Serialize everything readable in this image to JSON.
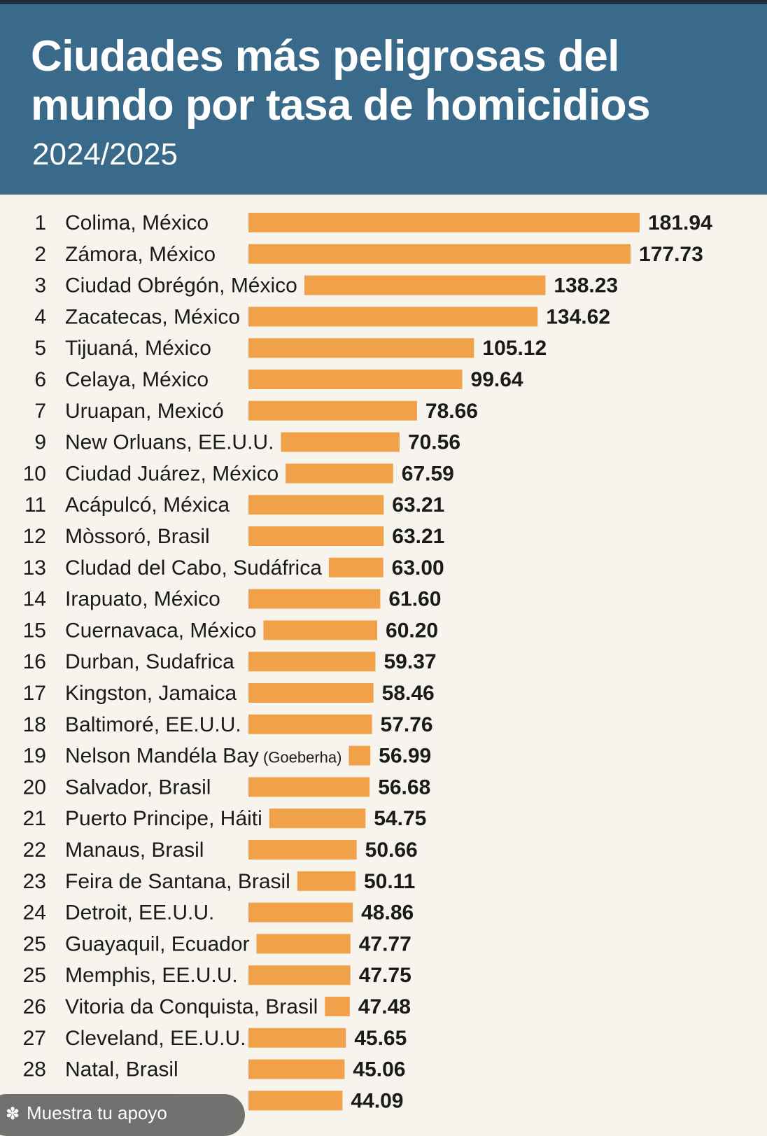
{
  "header": {
    "title": "Ciudades más peligrosas del mundo por tasa de homicidios",
    "subtitle": "2024/2025"
  },
  "overlay": {
    "support_label": "Muestra tu apoyo",
    "support_icon": "star-icon"
  },
  "colors": {
    "header_bg": "#3a6a8a",
    "bar": "#f0a14a",
    "background": "#f7f4ee"
  },
  "chart_data": {
    "type": "bar",
    "orientation": "horizontal",
    "title": "Ciudades más peligrosas del mundo por tasa de homicidios",
    "subtitle": "2024/2025",
    "rows": [
      {
        "rank": "1",
        "city": "Colima, México",
        "value": 181.94,
        "label": "181.94"
      },
      {
        "rank": "2",
        "city": "Zámora, México",
        "value": 177.73,
        "label": "177.73"
      },
      {
        "rank": "3",
        "city": "Ciudad Obrégón, México",
        "value": 138.23,
        "label": "138.23"
      },
      {
        "rank": "4",
        "city": "Zacatecas, México",
        "value": 134.62,
        "label": "134.62"
      },
      {
        "rank": "5",
        "city": "Tijuaná, México",
        "value": 105.12,
        "label": "105.12"
      },
      {
        "rank": "6",
        "city": "Celaya, México",
        "value": 99.64,
        "label": "99.64"
      },
      {
        "rank": "7",
        "city": "Uruapan, Mexicó",
        "value": 78.66,
        "label": "78.66"
      },
      {
        "rank": "9",
        "city": "New Orluans, EE.U.U.",
        "value": 70.56,
        "label": "70.56"
      },
      {
        "rank": "10",
        "city": "Ciudad Juárez, México",
        "value": 67.59,
        "label": "67.59"
      },
      {
        "rank": "11",
        "city": "Acápulcó, Méxica",
        "value": 63.21,
        "label": "63.21"
      },
      {
        "rank": "12",
        "city": "Mòssoró, Brasil",
        "value": 63.21,
        "label": "63.21"
      },
      {
        "rank": "13",
        "city": "Cludad del Cabo, Sudáfrica",
        "value": 63.0,
        "label": "63.00"
      },
      {
        "rank": "14",
        "city": "Irapuato, México",
        "value": 61.6,
        "label": "61.60"
      },
      {
        "rank": "15",
        "city": "Cuernavaca, México",
        "value": 60.2,
        "label": "60.20"
      },
      {
        "rank": "16",
        "city": "Durban, Sudafrica",
        "value": 59.37,
        "label": "59.37"
      },
      {
        "rank": "17",
        "city": "Kingston, Jamaica",
        "value": 58.46,
        "label": "58.46"
      },
      {
        "rank": "18",
        "city": "Baltimoré, EE.U.U.",
        "value": 57.76,
        "label": "57.76"
      },
      {
        "rank": "19",
        "city": "Nelson Mandéla Bay",
        "note": "(Goeberha)",
        "value": 56.99,
        "label": "56.99"
      },
      {
        "rank": "20",
        "city": "Salvador, Brasil",
        "value": 56.68,
        "label": "56.68"
      },
      {
        "rank": "21",
        "city": "Puerto Principe, Háiti",
        "value": 54.75,
        "label": "54.75"
      },
      {
        "rank": "22",
        "city": "Manaus, Brasil",
        "value": 50.66,
        "label": "50.66"
      },
      {
        "rank": "23",
        "city": "Feira de Santana, Brasil",
        "value": 50.11,
        "label": "50.11"
      },
      {
        "rank": "24",
        "city": "Detroit, EE.U.U.",
        "value": 48.86,
        "label": "48.86"
      },
      {
        "rank": "25",
        "city": "Guayaquil, Ecuador",
        "value": 47.77,
        "label": "47.77"
      },
      {
        "rank": "25",
        "city": "Memphis, EE.U.U.",
        "value": 47.75,
        "label": "47.75"
      },
      {
        "rank": "26",
        "city": "Vitoria da Conquista, Brasil",
        "value": 47.48,
        "label": "47.48"
      },
      {
        "rank": "27",
        "city": "Cleveland, EE.U.U.",
        "value": 45.65,
        "label": "45.65"
      },
      {
        "rank": "28",
        "city": "Natal, Brasil",
        "value": 45.06,
        "label": "45.06"
      },
      {
        "rank": "",
        "city": "",
        "value": 44.09,
        "label": "44.09"
      }
    ]
  }
}
